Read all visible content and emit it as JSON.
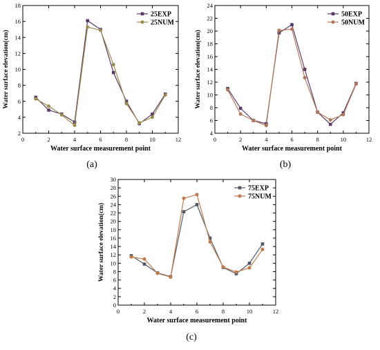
{
  "chart_data": [
    {
      "type": "line",
      "panel_label": "(a)",
      "xlabel": "Water surface measurement point",
      "ylabel": "Water surface elevation(cm)",
      "xlim": [
        0,
        12
      ],
      "ylim": [
        2,
        18
      ],
      "x_ticks": [
        0,
        2,
        4,
        6,
        8,
        10,
        12
      ],
      "y_ticks": [
        2,
        4,
        6,
        8,
        10,
        12,
        14,
        16,
        18
      ],
      "legend_position": "top-right",
      "x": [
        1,
        2,
        3,
        4,
        5,
        6,
        7,
        8,
        9,
        10,
        11
      ],
      "series": [
        {
          "name": "25EXP",
          "color": "#5a3a66",
          "marker": "square",
          "values": [
            6.5,
            4.9,
            4.4,
            3.4,
            16.1,
            15.0,
            9.6,
            6.0,
            3.2,
            4.4,
            6.9
          ]
        },
        {
          "name": "25NUM",
          "color": "#9c8a4e",
          "marker": "circle",
          "values": [
            6.3,
            5.4,
            4.3,
            3.0,
            15.3,
            14.9,
            10.6,
            5.7,
            3.3,
            4.0,
            6.8
          ]
        }
      ]
    },
    {
      "type": "line",
      "panel_label": "(b)",
      "xlabel": "Water surface measurement point",
      "ylabel": "Water surface elevation(cm)",
      "xlim": [
        0,
        12
      ],
      "ylim": [
        4,
        24
      ],
      "x_ticks": [
        0,
        2,
        4,
        6,
        8,
        10,
        12
      ],
      "y_ticks": [
        4,
        6,
        8,
        10,
        12,
        14,
        16,
        18,
        20,
        22,
        24
      ],
      "legend_position": "top-right",
      "x": [
        1,
        2,
        3,
        4,
        5,
        6,
        7,
        8,
        9,
        10,
        11
      ],
      "series": [
        {
          "name": "50EXP",
          "color": "#5a3a66",
          "marker": "square",
          "values": [
            11.0,
            7.9,
            6.0,
            5.5,
            19.7,
            21.0,
            14.0,
            7.3,
            5.4,
            7.2,
            11.8
          ]
        },
        {
          "name": "50NUM",
          "color": "#b0785a",
          "marker": "circle",
          "values": [
            10.8,
            7.0,
            6.0,
            5.2,
            20.1,
            20.3,
            12.7,
            7.3,
            6.1,
            6.9,
            11.7
          ]
        }
      ]
    },
    {
      "type": "line",
      "panel_label": "(c)",
      "xlabel": "Water surface measurement point",
      "ylabel": "Water surface elevation(cm)",
      "xlim": [
        0,
        12
      ],
      "ylim": [
        0,
        30
      ],
      "x_ticks": [
        0,
        2,
        4,
        6,
        8,
        10,
        12
      ],
      "y_ticks": [
        0,
        2,
        4,
        6,
        8,
        10,
        12,
        14,
        16,
        18,
        20,
        22,
        24,
        26,
        28,
        30
      ],
      "legend_position": "top-right",
      "x": [
        1,
        2,
        3,
        4,
        5,
        6,
        7,
        8,
        9,
        10,
        11
      ],
      "series": [
        {
          "name": "75EXP",
          "color": "#4f5866",
          "marker": "square",
          "values": [
            11.8,
            9.8,
            7.7,
            6.8,
            22.3,
            24.0,
            16.0,
            9.0,
            7.5,
            10.0,
            14.6
          ]
        },
        {
          "name": "75NUM",
          "color": "#c07a4a",
          "marker": "circle",
          "values": [
            11.5,
            11.0,
            7.6,
            6.7,
            25.5,
            26.4,
            15.1,
            9.1,
            7.9,
            8.9,
            13.3
          ]
        }
      ]
    }
  ]
}
